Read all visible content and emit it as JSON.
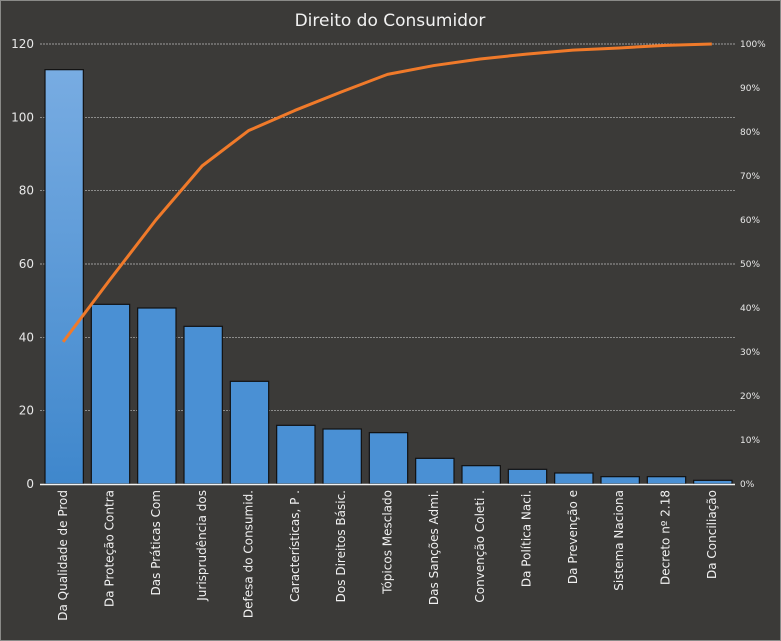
{
  "chart_data": {
    "type": "bar",
    "title": "Direito do Consumidor",
    "categories": [
      "Da Qualidade de Prod",
      "Da Proteção  Contra",
      "Das Práticas Com",
      "Jurisprudência dos",
      "Defesa do Consumid.",
      "Características, P .",
      "Dos Direitos Básic.",
      "Tópicos Mesclado",
      "Das Sanções Admi.",
      "Convenção  Coleti .",
      "Da Política Naci.",
      "Da Prevenção e",
      "Sistema Naciona",
      "Decreto nº 2.18",
      "Da Conciliação"
    ],
    "series": [
      {
        "type": "bar",
        "values": [
          113,
          49,
          48,
          43,
          28,
          16,
          15,
          14,
          7,
          5,
          4,
          3,
          2,
          2,
          1
        ],
        "color": "#4a90d4"
      },
      {
        "type": "line",
        "axis": "right",
        "values": [
          32.3,
          46.3,
          60.0,
          72.3,
          80.3,
          84.9,
          89.1,
          93.1,
          95.1,
          96.6,
          97.7,
          98.6,
          99.1,
          99.7,
          100
        ],
        "color": "#f07a2a"
      }
    ],
    "ylim": [
      0,
      120
    ],
    "yticks": [
      0,
      20,
      40,
      60,
      80,
      100,
      120
    ],
    "y2lim": [
      0,
      100
    ],
    "y2ticks": [
      "0%",
      "10%",
      "20%",
      "30%",
      "40%",
      "50%",
      "60%",
      "70%",
      "80%",
      "90%",
      "100%"
    ],
    "grid": true,
    "legend": "none"
  }
}
